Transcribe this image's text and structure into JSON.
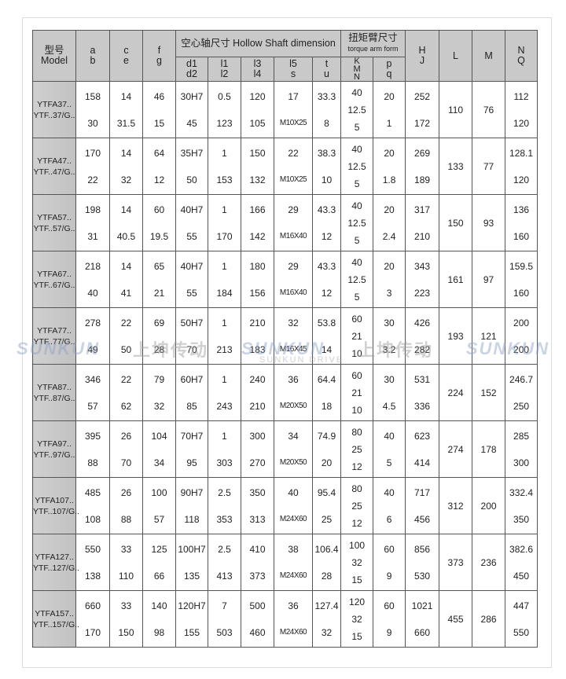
{
  "header": {
    "model": [
      "型号",
      "Model"
    ],
    "ab": [
      "a",
      "b"
    ],
    "ce": [
      "c",
      "e"
    ],
    "fg": [
      "f",
      "g"
    ],
    "hollow_shaft": "空心轴尺寸 Hollow Shaft dimension",
    "torque_arm": [
      "扭矩臂尺寸",
      "torque arm form"
    ],
    "d": [
      "d1",
      "d2"
    ],
    "l12": [
      "l1",
      "l2"
    ],
    "l34": [
      "l3",
      "l4"
    ],
    "l5s": [
      "l5",
      "s"
    ],
    "tu": [
      "t",
      "u"
    ],
    "kmn": [
      "K",
      "M",
      "N"
    ],
    "pq": [
      "p",
      "q"
    ],
    "hj": [
      "H",
      "J"
    ],
    "L": "L",
    "M": "M",
    "nq": [
      "N",
      "Q"
    ]
  },
  "rows": [
    {
      "model": [
        "YTFA37..",
        "YTF..37/G.."
      ],
      "ab": [
        "158",
        "30"
      ],
      "ce": [
        "14",
        "31.5"
      ],
      "fg": [
        "46",
        "15"
      ],
      "d": [
        "30H7",
        "45"
      ],
      "l12": [
        "0.5",
        "123"
      ],
      "l34": [
        "120",
        "105"
      ],
      "l5s": [
        "17",
        "M10X25"
      ],
      "tu": [
        "33.3",
        "8"
      ],
      "kmn": [
        "40",
        "12.5",
        "5"
      ],
      "pq": [
        "20",
        "1"
      ],
      "hj": [
        "252",
        "172"
      ],
      "L": "110",
      "M": "76",
      "nq": [
        "112",
        "120"
      ]
    },
    {
      "model": [
        "YTFA47..",
        "YTF..47/G.."
      ],
      "ab": [
        "170",
        "22"
      ],
      "ce": [
        "14",
        "32"
      ],
      "fg": [
        "64",
        "12"
      ],
      "d": [
        "35H7",
        "50"
      ],
      "l12": [
        "1",
        "153"
      ],
      "l34": [
        "150",
        "132"
      ],
      "l5s": [
        "22",
        "M10X25"
      ],
      "tu": [
        "38.3",
        "10"
      ],
      "kmn": [
        "40",
        "12.5",
        "5"
      ],
      "pq": [
        "20",
        "1.8"
      ],
      "hj": [
        "269",
        "189"
      ],
      "L": "133",
      "M": "77",
      "nq": [
        "128.1",
        "120"
      ]
    },
    {
      "model": [
        "YTFA57..",
        "YTF..57/G.."
      ],
      "ab": [
        "198",
        "31"
      ],
      "ce": [
        "14",
        "40.5"
      ],
      "fg": [
        "60",
        "19.5"
      ],
      "d": [
        "40H7",
        "55"
      ],
      "l12": [
        "1",
        "170"
      ],
      "l34": [
        "166",
        "142"
      ],
      "l5s": [
        "29",
        "M16X40"
      ],
      "tu": [
        "43.3",
        "12"
      ],
      "kmn": [
        "40",
        "12.5",
        "5"
      ],
      "pq": [
        "20",
        "2.4"
      ],
      "hj": [
        "317",
        "210"
      ],
      "L": "150",
      "M": "93",
      "nq": [
        "136",
        "160"
      ]
    },
    {
      "model": [
        "YTFA67..",
        "YTF..67/G.."
      ],
      "ab": [
        "218",
        "40"
      ],
      "ce": [
        "14",
        "41"
      ],
      "fg": [
        "65",
        "21"
      ],
      "d": [
        "40H7",
        "55"
      ],
      "l12": [
        "1",
        "184"
      ],
      "l34": [
        "180",
        "156"
      ],
      "l5s": [
        "29",
        "M16X40"
      ],
      "tu": [
        "43.3",
        "12"
      ],
      "kmn": [
        "40",
        "12.5",
        "5"
      ],
      "pq": [
        "20",
        "3"
      ],
      "hj": [
        "343",
        "223"
      ],
      "L": "161",
      "M": "97",
      "nq": [
        "159.5",
        "160"
      ]
    },
    {
      "model": [
        "YTFA77..",
        "YTF..77/G.."
      ],
      "ab": [
        "278",
        "49"
      ],
      "ce": [
        "22",
        "50"
      ],
      "fg": [
        "69",
        "28"
      ],
      "d": [
        "50H7",
        "70"
      ],
      "l12": [
        "1",
        "213"
      ],
      "l34": [
        "210",
        "183"
      ],
      "l5s": [
        "32",
        "M16X45"
      ],
      "tu": [
        "53.8",
        "14"
      ],
      "kmn": [
        "60",
        "21",
        "10"
      ],
      "pq": [
        "30",
        "3.2"
      ],
      "hj": [
        "426",
        "282"
      ],
      "L": "193",
      "M": "121",
      "nq": [
        "200",
        "200"
      ]
    },
    {
      "model": [
        "YTFA87..",
        "YTF..87/G.."
      ],
      "ab": [
        "346",
        "57"
      ],
      "ce": [
        "22",
        "62"
      ],
      "fg": [
        "79",
        "32"
      ],
      "d": [
        "60H7",
        "85"
      ],
      "l12": [
        "1",
        "243"
      ],
      "l34": [
        "240",
        "210"
      ],
      "l5s": [
        "36",
        "M20X50"
      ],
      "tu": [
        "64.4",
        "18"
      ],
      "kmn": [
        "60",
        "21",
        "10"
      ],
      "pq": [
        "30",
        "4.5"
      ],
      "hj": [
        "531",
        "336"
      ],
      "L": "224",
      "M": "152",
      "nq": [
        "246.7",
        "250"
      ]
    },
    {
      "model": [
        "YTFA97..",
        "YTF..97/G.."
      ],
      "ab": [
        "395",
        "88"
      ],
      "ce": [
        "26",
        "70"
      ],
      "fg": [
        "104",
        "34"
      ],
      "d": [
        "70H7",
        "95"
      ],
      "l12": [
        "1",
        "303"
      ],
      "l34": [
        "300",
        "270"
      ],
      "l5s": [
        "34",
        "M20X50"
      ],
      "tu": [
        "74.9",
        "20"
      ],
      "kmn": [
        "80",
        "25",
        "12"
      ],
      "pq": [
        "40",
        "5"
      ],
      "hj": [
        "623",
        "414"
      ],
      "L": "274",
      "M": "178",
      "nq": [
        "285",
        "300"
      ]
    },
    {
      "model": [
        "YTFA107..",
        "YTF..107/G.."
      ],
      "ab": [
        "485",
        "108"
      ],
      "ce": [
        "26",
        "88"
      ],
      "fg": [
        "100",
        "57"
      ],
      "d": [
        "90H7",
        "118"
      ],
      "l12": [
        "2.5",
        "353"
      ],
      "l34": [
        "350",
        "313"
      ],
      "l5s": [
        "40",
        "M24X60"
      ],
      "tu": [
        "95.4",
        "25"
      ],
      "kmn": [
        "80",
        "25",
        "12"
      ],
      "pq": [
        "40",
        "6"
      ],
      "hj": [
        "717",
        "456"
      ],
      "L": "312",
      "M": "200",
      "nq": [
        "332.4",
        "350"
      ]
    },
    {
      "model": [
        "YTFA127..",
        "YTF..127/G.."
      ],
      "ab": [
        "550",
        "138"
      ],
      "ce": [
        "33",
        "110"
      ],
      "fg": [
        "125",
        "66"
      ],
      "d": [
        "100H7",
        "135"
      ],
      "l12": [
        "2.5",
        "413"
      ],
      "l34": [
        "410",
        "373"
      ],
      "l5s": [
        "38",
        "M24X60"
      ],
      "tu": [
        "106.4",
        "28"
      ],
      "kmn": [
        "100",
        "32",
        "15"
      ],
      "pq": [
        "60",
        "9"
      ],
      "hj": [
        "856",
        "530"
      ],
      "L": "373",
      "M": "236",
      "nq": [
        "382.6",
        "450"
      ]
    },
    {
      "model": [
        "YTFA157..",
        "YTF..157/G.."
      ],
      "ab": [
        "660",
        "170"
      ],
      "ce": [
        "33",
        "150"
      ],
      "fg": [
        "140",
        "98"
      ],
      "d": [
        "120H7",
        "155"
      ],
      "l12": [
        "7",
        "503"
      ],
      "l34": [
        "500",
        "460"
      ],
      "l5s": [
        "36",
        "M24X60"
      ],
      "tu": [
        "127.4",
        "32"
      ],
      "kmn": [
        "120",
        "32",
        "15"
      ],
      "pq": [
        "60",
        "9"
      ],
      "hj": [
        "1021",
        "660"
      ],
      "L": "455",
      "M": "286",
      "nq": [
        "447",
        "550"
      ]
    }
  ],
  "watermark": {
    "brand": "SUNKUN",
    "cn": "上坤传动",
    "en": "SUNKUN DRIVE"
  }
}
